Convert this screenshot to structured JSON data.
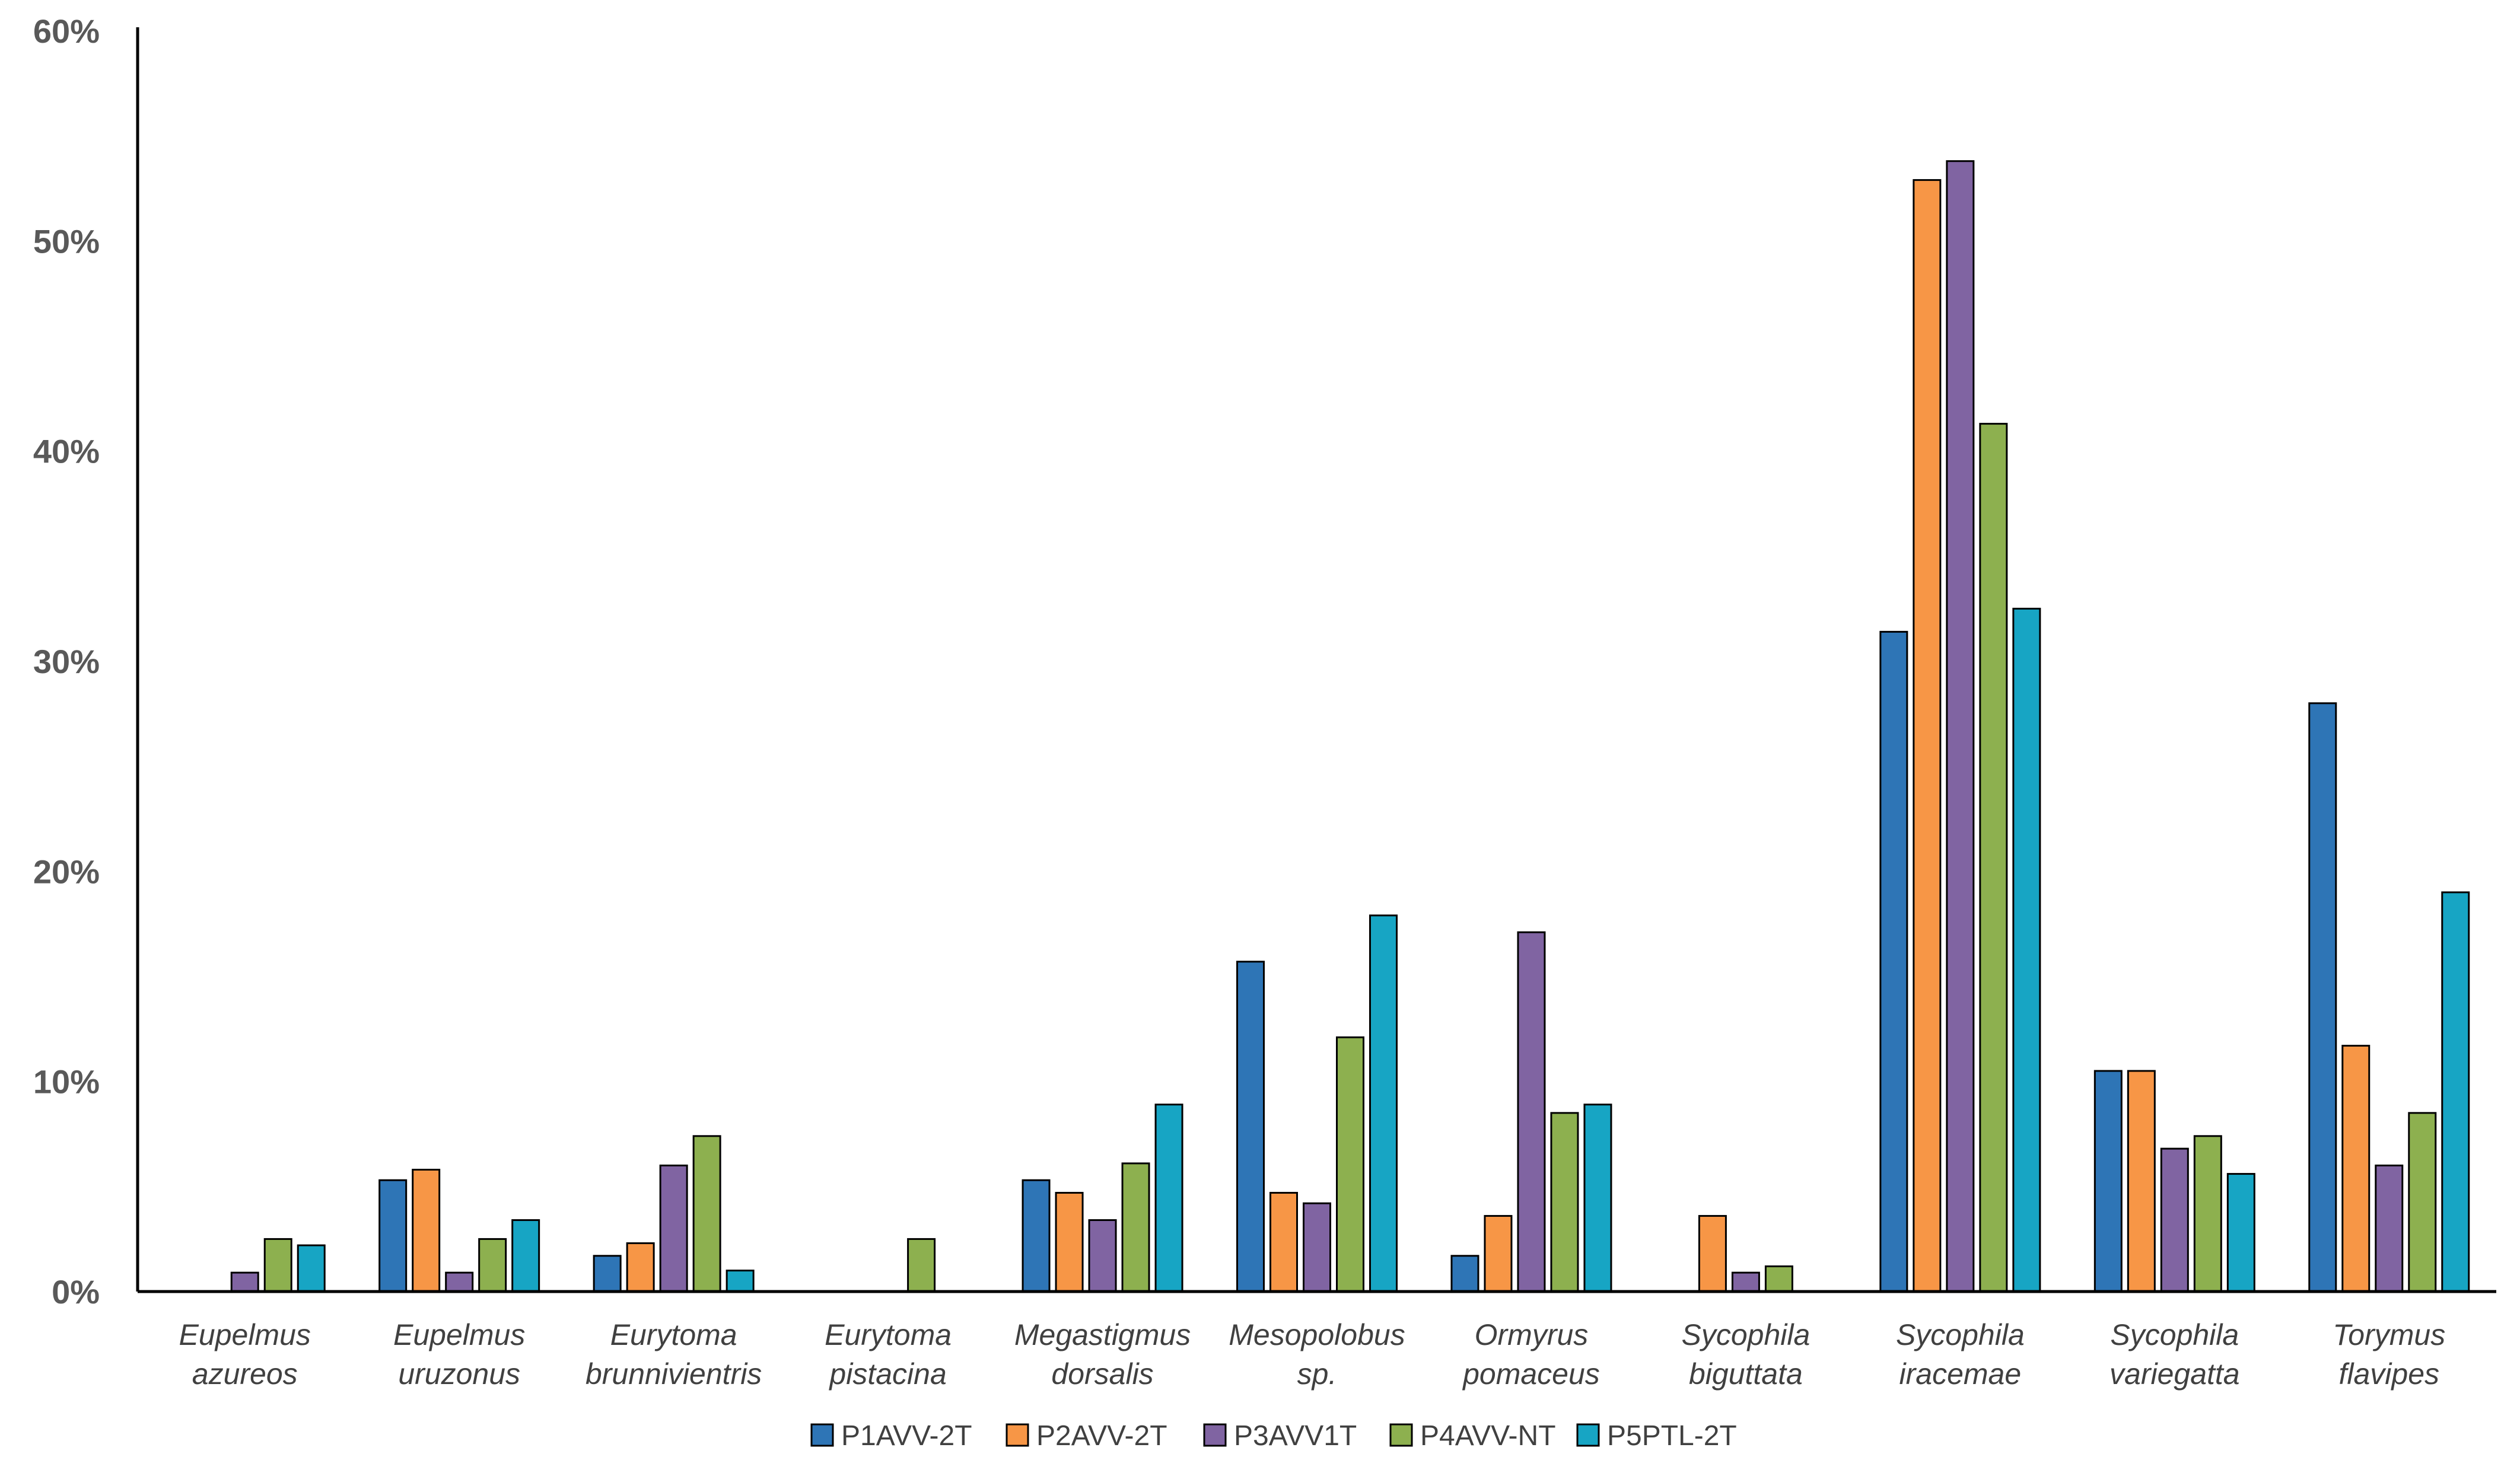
{
  "chart_data": {
    "type": "bar",
    "title": "",
    "xlabel": "",
    "ylabel": "",
    "ylim": [
      0,
      60
    ],
    "y_ticks": [
      "0%",
      "10%",
      "20%",
      "30%",
      "40%",
      "50%",
      "60%"
    ],
    "y_tick_values": [
      0,
      10,
      20,
      30,
      40,
      50,
      60
    ],
    "legend_position": "bottom",
    "categories": [
      [
        "Eupelmus",
        "azureos"
      ],
      [
        "Eupelmus",
        "uruzonus"
      ],
      [
        "Eurytoma",
        "brunnivientris"
      ],
      [
        "Eurytoma",
        "pistacina"
      ],
      [
        "Megastigmus",
        "dorsalis"
      ],
      [
        "Mesopolobus",
        "sp."
      ],
      [
        "Ormyrus",
        "pomaceus"
      ],
      [
        "Sycophila",
        "biguttata"
      ],
      [
        "Sycophila",
        "iracemae"
      ],
      [
        "Sycophila",
        "variegatta"
      ],
      [
        "Torymus",
        "flavipes"
      ]
    ],
    "series": [
      {
        "name": "P1AVV-2T",
        "color": "#2E75B6",
        "values": [
          0,
          5.3,
          1.7,
          0,
          5.3,
          15.7,
          1.7,
          0,
          31.4,
          10.5,
          28.0
        ]
      },
      {
        "name": "P2AVV-2T",
        "color": "#F79646",
        "values": [
          0,
          5.8,
          2.3,
          0,
          4.7,
          4.7,
          3.6,
          3.6,
          52.9,
          10.5,
          11.7
        ]
      },
      {
        "name": "P3AVV1T",
        "color": "#8064A2",
        "values": [
          0.9,
          0.9,
          6.0,
          0,
          3.4,
          4.2,
          17.1,
          0.9,
          53.8,
          6.8,
          6.0
        ]
      },
      {
        "name": "P4AVV-NT",
        "color": "#8DB04F",
        "values": [
          2.5,
          2.5,
          7.4,
          2.5,
          6.1,
          12.1,
          8.5,
          1.2,
          41.3,
          7.4,
          8.5
        ]
      },
      {
        "name": "P5PTL-2T",
        "color": "#17A5C4",
        "values": [
          2.2,
          3.4,
          1.0,
          0,
          8.9,
          17.9,
          8.9,
          0,
          32.5,
          5.6,
          19.0
        ]
      }
    ]
  }
}
